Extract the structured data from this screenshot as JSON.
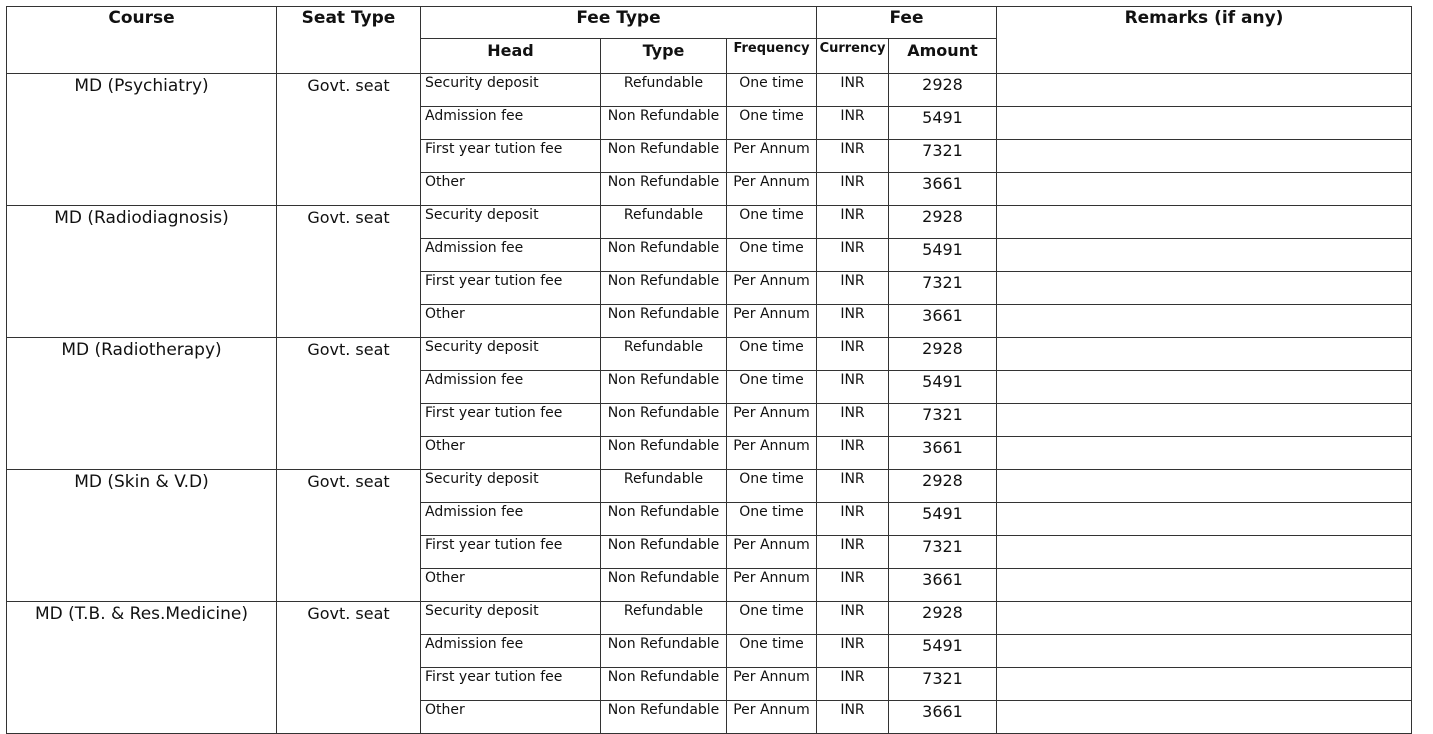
{
  "headers": {
    "course": "Course",
    "seat_type": "Seat Type",
    "fee_type": "Fee Type",
    "fee": "Fee",
    "remarks": "Remarks (if any)",
    "head": "Head",
    "type": "Type",
    "frequency": "Frequency",
    "currency": "Currency",
    "amount": "Amount"
  },
  "courses": [
    {
      "course": "MD (Psychiatry)",
      "seat_type": "Govt. seat",
      "fees": [
        {
          "head": "Security deposit",
          "type": "Refundable",
          "frequency": "One time",
          "currency": "INR",
          "amount": "2928",
          "remarks": ""
        },
        {
          "head": "Admission fee",
          "type": "Non Refundable",
          "frequency": "One time",
          "currency": "INR",
          "amount": "5491",
          "remarks": ""
        },
        {
          "head": "First year tution fee",
          "type": "Non Refundable",
          "frequency": "Per Annum",
          "currency": "INR",
          "amount": "7321",
          "remarks": ""
        },
        {
          "head": "Other",
          "type": "Non Refundable",
          "frequency": "Per Annum",
          "currency": "INR",
          "amount": "3661",
          "remarks": ""
        }
      ]
    },
    {
      "course": "MD (Radiodiagnosis)",
      "seat_type": "Govt. seat",
      "fees": [
        {
          "head": "Security deposit",
          "type": "Refundable",
          "frequency": "One time",
          "currency": "INR",
          "amount": "2928",
          "remarks": ""
        },
        {
          "head": "Admission fee",
          "type": "Non Refundable",
          "frequency": "One time",
          "currency": "INR",
          "amount": "5491",
          "remarks": ""
        },
        {
          "head": "First year tution fee",
          "type": "Non Refundable",
          "frequency": "Per Annum",
          "currency": "INR",
          "amount": "7321",
          "remarks": ""
        },
        {
          "head": "Other",
          "type": "Non Refundable",
          "frequency": "Per Annum",
          "currency": "INR",
          "amount": "3661",
          "remarks": ""
        }
      ]
    },
    {
      "course": "MD (Radiotherapy)",
      "seat_type": "Govt. seat",
      "fees": [
        {
          "head": "Security deposit",
          "type": "Refundable",
          "frequency": "One time",
          "currency": "INR",
          "amount": "2928",
          "remarks": ""
        },
        {
          "head": "Admission fee",
          "type": "Non Refundable",
          "frequency": "One time",
          "currency": "INR",
          "amount": "5491",
          "remarks": ""
        },
        {
          "head": "First year tution fee",
          "type": "Non Refundable",
          "frequency": "Per Annum",
          "currency": "INR",
          "amount": "7321",
          "remarks": ""
        },
        {
          "head": "Other",
          "type": "Non Refundable",
          "frequency": "Per Annum",
          "currency": "INR",
          "amount": "3661",
          "remarks": ""
        }
      ]
    },
    {
      "course": "MD (Skin & V.D)",
      "seat_type": "Govt. seat",
      "fees": [
        {
          "head": "Security deposit",
          "type": "Refundable",
          "frequency": "One time",
          "currency": "INR",
          "amount": "2928",
          "remarks": ""
        },
        {
          "head": "Admission fee",
          "type": "Non Refundable",
          "frequency": "One time",
          "currency": "INR",
          "amount": "5491",
          "remarks": ""
        },
        {
          "head": "First year tution fee",
          "type": "Non Refundable",
          "frequency": "Per Annum",
          "currency": "INR",
          "amount": "7321",
          "remarks": ""
        },
        {
          "head": "Other",
          "type": "Non Refundable",
          "frequency": "Per Annum",
          "currency": "INR",
          "amount": "3661",
          "remarks": ""
        }
      ]
    },
    {
      "course": "MD (T.B. & Res.Medicine)",
      "seat_type": "Govt. seat",
      "fees": [
        {
          "head": "Security deposit",
          "type": "Refundable",
          "frequency": "One time",
          "currency": "INR",
          "amount": "2928",
          "remarks": ""
        },
        {
          "head": "Admission fee",
          "type": "Non Refundable",
          "frequency": "One time",
          "currency": "INR",
          "amount": "5491",
          "remarks": ""
        },
        {
          "head": "First year tution fee",
          "type": "Non Refundable",
          "frequency": "Per Annum",
          "currency": "INR",
          "amount": "7321",
          "remarks": ""
        },
        {
          "head": "Other",
          "type": "Non Refundable",
          "frequency": "Per Annum",
          "currency": "INR",
          "amount": "3661",
          "remarks": ""
        }
      ]
    }
  ]
}
